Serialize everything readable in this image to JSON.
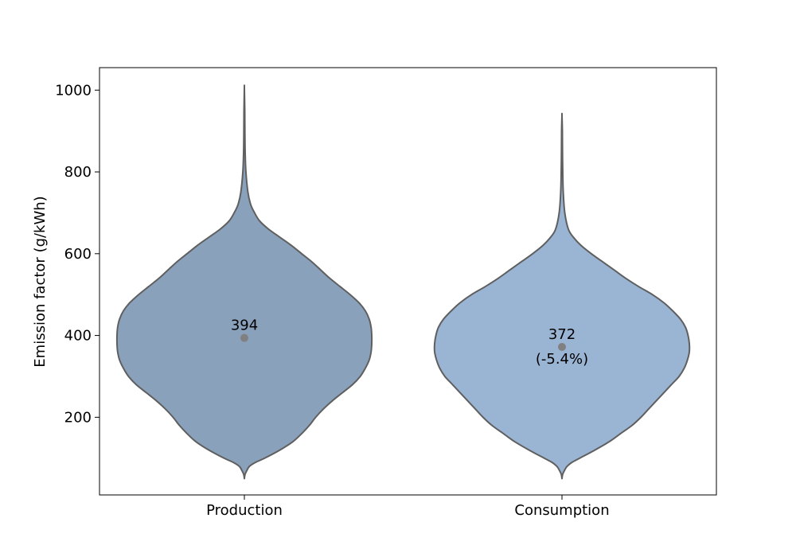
{
  "chart_data": {
    "type": "violin",
    "title": "",
    "xlabel": "",
    "ylabel": "Emission factor (g/kWh)",
    "ylim": [
      10,
      1055
    ],
    "yticks": [
      200,
      400,
      600,
      800,
      1000
    ],
    "grid": false,
    "categories": [
      "Production",
      "Consumption"
    ],
    "colors": {
      "Production": "#8aa1bb",
      "Consumption": "#9ab4d3",
      "outline": "#5f5f5f",
      "marker": "#808080"
    },
    "violins": [
      {
        "name": "Production",
        "min": 50,
        "max": 1005,
        "marker_value": 394,
        "annotations": [
          "394"
        ],
        "profile": [
          [
            50,
            0.0
          ],
          [
            60,
            0.005
          ],
          [
            70,
            0.02
          ],
          [
            80,
            0.04
          ],
          [
            90,
            0.09
          ],
          [
            100,
            0.16
          ],
          [
            120,
            0.28
          ],
          [
            140,
            0.38
          ],
          [
            160,
            0.45
          ],
          [
            180,
            0.51
          ],
          [
            200,
            0.56
          ],
          [
            220,
            0.62
          ],
          [
            240,
            0.69
          ],
          [
            260,
            0.77
          ],
          [
            280,
            0.85
          ],
          [
            300,
            0.91
          ],
          [
            320,
            0.95
          ],
          [
            340,
            0.98
          ],
          [
            360,
            0.995
          ],
          [
            380,
            1.0
          ],
          [
            400,
            1.0
          ],
          [
            420,
            0.995
          ],
          [
            440,
            0.98
          ],
          [
            460,
            0.95
          ],
          [
            480,
            0.9
          ],
          [
            500,
            0.83
          ],
          [
            520,
            0.75
          ],
          [
            540,
            0.67
          ],
          [
            560,
            0.6
          ],
          [
            580,
            0.53
          ],
          [
            600,
            0.45
          ],
          [
            620,
            0.37
          ],
          [
            640,
            0.28
          ],
          [
            660,
            0.19
          ],
          [
            680,
            0.12
          ],
          [
            700,
            0.08
          ],
          [
            720,
            0.05
          ],
          [
            750,
            0.028
          ],
          [
            800,
            0.012
          ],
          [
            850,
            0.006
          ],
          [
            900,
            0.004
          ],
          [
            950,
            0.003
          ],
          [
            1005,
            0.0
          ]
        ]
      },
      {
        "name": "Consumption",
        "min": 50,
        "max": 938,
        "marker_value": 372,
        "annotations": [
          "372",
          "(-5.4%)"
        ],
        "profile": [
          [
            50,
            0.0
          ],
          [
            60,
            0.005
          ],
          [
            70,
            0.02
          ],
          [
            80,
            0.04
          ],
          [
            90,
            0.08
          ],
          [
            100,
            0.14
          ],
          [
            120,
            0.26
          ],
          [
            140,
            0.37
          ],
          [
            160,
            0.46
          ],
          [
            180,
            0.55
          ],
          [
            200,
            0.62
          ],
          [
            220,
            0.68
          ],
          [
            240,
            0.74
          ],
          [
            260,
            0.8
          ],
          [
            280,
            0.86
          ],
          [
            300,
            0.92
          ],
          [
            320,
            0.96
          ],
          [
            340,
            0.985
          ],
          [
            360,
            1.0
          ],
          [
            380,
            1.0
          ],
          [
            400,
            0.99
          ],
          [
            420,
            0.97
          ],
          [
            440,
            0.93
          ],
          [
            460,
            0.87
          ],
          [
            480,
            0.8
          ],
          [
            500,
            0.71
          ],
          [
            520,
            0.6
          ],
          [
            540,
            0.5
          ],
          [
            560,
            0.41
          ],
          [
            580,
            0.32
          ],
          [
            600,
            0.23
          ],
          [
            620,
            0.15
          ],
          [
            640,
            0.09
          ],
          [
            660,
            0.05
          ],
          [
            700,
            0.022
          ],
          [
            750,
            0.01
          ],
          [
            800,
            0.006
          ],
          [
            850,
            0.004
          ],
          [
            900,
            0.003
          ],
          [
            938,
            0.0
          ]
        ]
      }
    ]
  }
}
